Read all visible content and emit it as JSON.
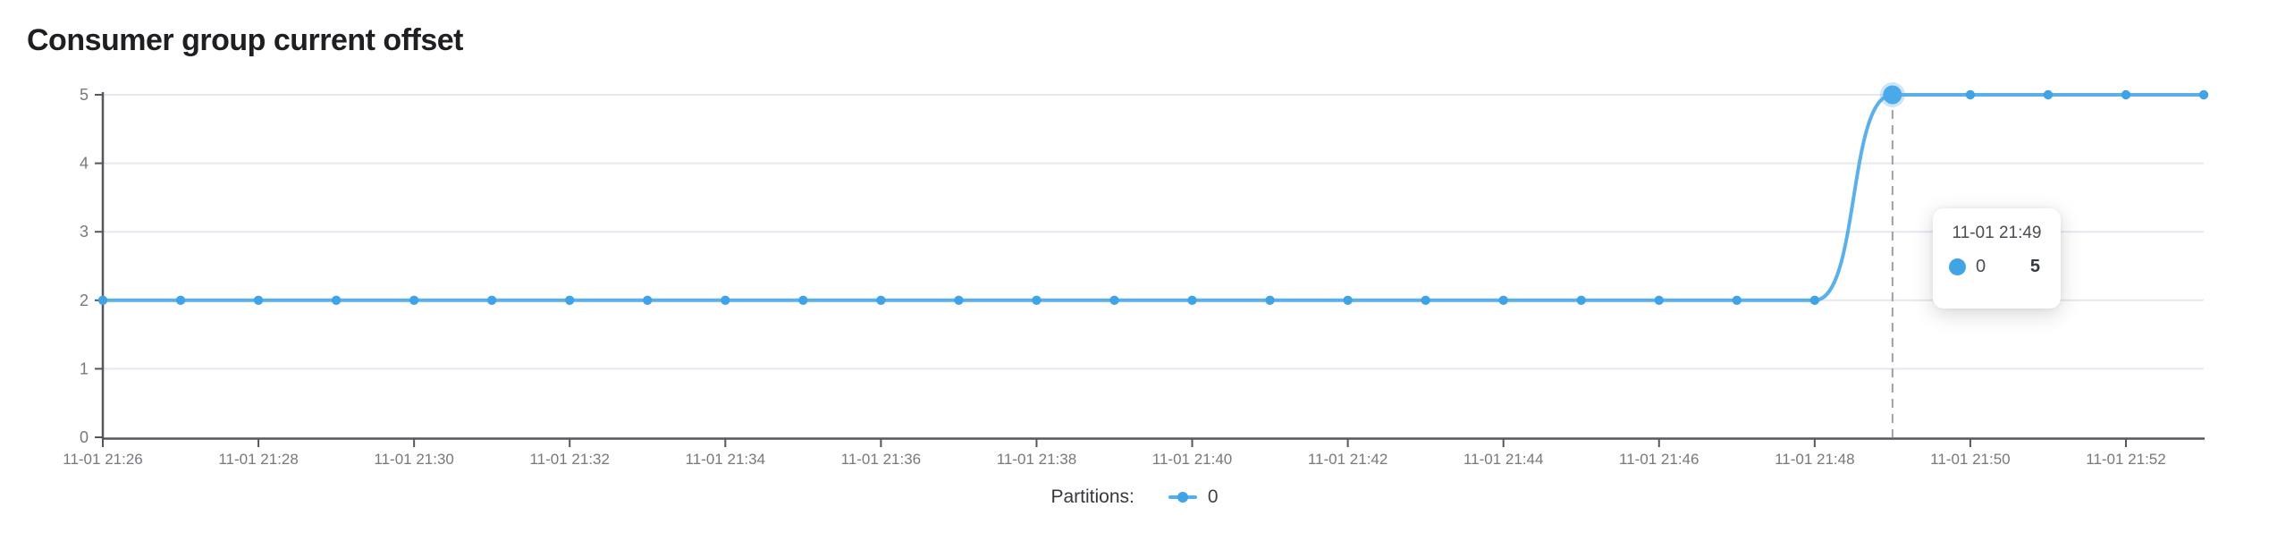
{
  "title": "Consumer group current offset",
  "legend": {
    "label": "Partitions:",
    "series_name": "0"
  },
  "tooltip": {
    "time": "11-01 21:49",
    "series": "0",
    "value": "5"
  },
  "colors": {
    "line": "#5cb0ea",
    "dot": "#3fa3e6",
    "active_dot": "#49a9e9",
    "active_halo": "rgba(85,173,233,0.30)",
    "grid": "#e5e8f1",
    "axis": "#55575f",
    "tick_label": "#75787f",
    "dashed": "#9ba0a8"
  },
  "chart_data": {
    "type": "line",
    "title": "Consumer group current offset",
    "x": [
      "11-01 21:26",
      "11-01 21:27",
      "11-01 21:28",
      "11-01 21:29",
      "11-01 21:30",
      "11-01 21:31",
      "11-01 21:32",
      "11-01 21:33",
      "11-01 21:34",
      "11-01 21:35",
      "11-01 21:36",
      "11-01 21:37",
      "11-01 21:38",
      "11-01 21:39",
      "11-01 21:40",
      "11-01 21:41",
      "11-01 21:42",
      "11-01 21:43",
      "11-01 21:44",
      "11-01 21:45",
      "11-01 21:46",
      "11-01 21:47",
      "11-01 21:48",
      "11-01 21:49",
      "11-01 21:50",
      "11-01 21:51",
      "11-01 21:52",
      "11-01 21:53"
    ],
    "series": [
      {
        "name": "0",
        "values": [
          2,
          2,
          2,
          2,
          2,
          2,
          2,
          2,
          2,
          2,
          2,
          2,
          2,
          2,
          2,
          2,
          2,
          2,
          2,
          2,
          2,
          2,
          2,
          5,
          5,
          5,
          5,
          5
        ]
      }
    ],
    "xtick_labels": [
      "11-01 21:26",
      "11-01 21:28",
      "11-01 21:30",
      "11-01 21:32",
      "11-01 21:34",
      "11-01 21:36",
      "11-01 21:38",
      "11-01 21:40",
      "11-01 21:42",
      "11-01 21:44",
      "11-01 21:46",
      "11-01 21:48",
      "11-01 21:50",
      "11-01 21:52"
    ],
    "yticks": [
      0,
      1,
      2,
      3,
      4,
      5
    ],
    "ylim": [
      0,
      5
    ],
    "grid": true,
    "legend_position": "bottom",
    "highlight_index": 23,
    "highlight": {
      "x": "11-01 21:49",
      "series": "0",
      "value": 5
    }
  }
}
